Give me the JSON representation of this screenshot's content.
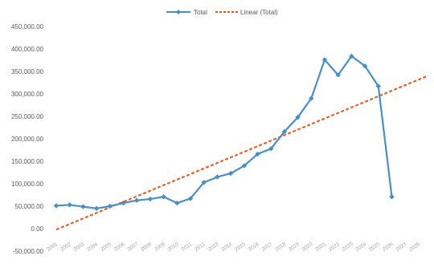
{
  "chart_data": {
    "type": "line",
    "title": "",
    "xlabel": "",
    "ylabel": "",
    "ylim": [
      -50000,
      450000
    ],
    "y_ticks": [
      "-50,000.00",
      "0.00",
      "50,000.00",
      "100,000.00",
      "150,000.00",
      "200,000.00",
      "250,000.00",
      "300,000.00",
      "350,000.00",
      "400,000.00",
      "450,000.00"
    ],
    "categories": [
      "2001",
      "2002",
      "2003",
      "2004",
      "2005",
      "2006",
      "2007",
      "2008",
      "2009",
      "2010",
      "2011",
      "2012",
      "2013",
      "2014",
      "2015",
      "2016",
      "2017",
      "2018",
      "2019",
      "2020",
      "2021",
      "2022",
      "2023",
      "2024",
      "2025",
      "2026",
      "2027",
      "2028"
    ],
    "series": [
      {
        "name": "Total",
        "color": "#4a8fc4",
        "values": [
          51000,
          53000,
          49000,
          45000,
          50000,
          57000,
          63000,
          66000,
          71000,
          57000,
          67000,
          103000,
          115000,
          123000,
          140000,
          166000,
          178000,
          216000,
          248000,
          290000,
          376000,
          342000,
          384000,
          362000,
          317000,
          71000,
          null,
          null
        ]
      },
      {
        "name": "Linear (Total)",
        "color": "#e8561f",
        "style": "dashed",
        "trend_start": -2000,
        "trend_end": 340000
      }
    ],
    "legend_position": "top",
    "grid": false
  }
}
